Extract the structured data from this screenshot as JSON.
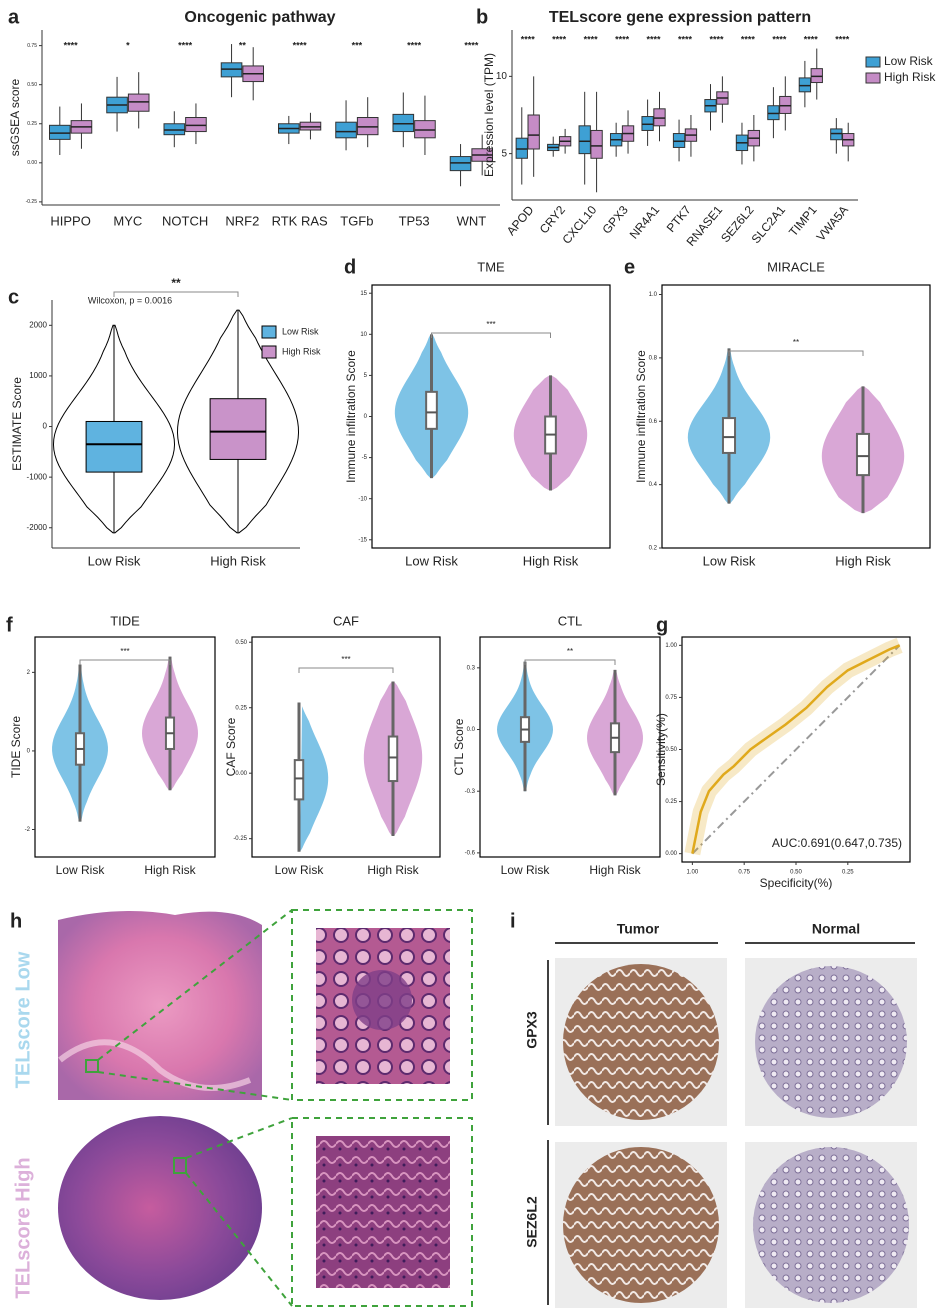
{
  "chart_data": [
    {
      "type": "box",
      "panel": "a",
      "title": "Oncogenic pathway",
      "y_label": "ssGSEA score",
      "categories": [
        "HIPPO",
        "MYC",
        "NOTCH",
        "NRF2",
        "RTK RAS",
        "TGFb",
        "TP53",
        "WNT"
      ],
      "significance": [
        "****",
        "*",
        "****",
        "**",
        "****",
        "***",
        "****",
        "****"
      ],
      "ylim": [
        -0.27,
        0.85
      ],
      "yticks": [
        -0.25,
        {
          "value": 0,
          "label": "0.00"
        },
        0.25,
        {
          "value": 0.5,
          "label": "0.50"
        },
        0.75
      ],
      "series": [
        {
          "name": "Low Risk",
          "color": "#3ea0d4",
          "values": [
            [
              0.05,
              0.15,
              0.19,
              0.24,
              0.36
            ],
            [
              0.2,
              0.32,
              0.37,
              0.42,
              0.55
            ],
            [
              0.1,
              0.18,
              0.21,
              0.25,
              0.33
            ],
            [
              0.42,
              0.55,
              0.6,
              0.64,
              0.76
            ],
            [
              0.12,
              0.19,
              0.22,
              0.25,
              0.3
            ],
            [
              0.08,
              0.16,
              0.2,
              0.26,
              0.4
            ],
            [
              0.1,
              0.2,
              0.25,
              0.31,
              0.45
            ],
            [
              -0.15,
              -0.05,
              0,
              0.04,
              0.12
            ]
          ]
        },
        {
          "name": "High Risk",
          "color": "#c58cc6",
          "values": [
            [
              0.09,
              0.19,
              0.23,
              0.27,
              0.38
            ],
            [
              0.22,
              0.33,
              0.39,
              0.44,
              0.58
            ],
            [
              0.12,
              0.2,
              0.24,
              0.29,
              0.38
            ],
            [
              0.4,
              0.52,
              0.57,
              0.62,
              0.74
            ],
            [
              0.15,
              0.21,
              0.23,
              0.26,
              0.32
            ],
            [
              0.1,
              0.18,
              0.23,
              0.29,
              0.42
            ],
            [
              0.05,
              0.16,
              0.21,
              0.27,
              0.43
            ],
            [
              -0.08,
              0.01,
              0.05,
              0.09,
              0.18
            ]
          ]
        }
      ]
    },
    {
      "type": "box",
      "panel": "b",
      "title": "TELscore gene expression pattern",
      "y_label": "Expression level (TPM)",
      "categories": [
        "APOD",
        "CRY2",
        "CXCL10",
        "GPX3",
        "NR4A1",
        "PTK7",
        "RNASE1",
        "SEZ6L2",
        "SLC2A1",
        "TIMP1",
        "VWA5A"
      ],
      "significance": [
        "****",
        "****",
        "****",
        "****",
        "****",
        "****",
        "****",
        "****",
        "****",
        "****",
        "****"
      ],
      "ylim": [
        2,
        13
      ],
      "yticks": [
        5,
        10
      ],
      "legend": "right",
      "series": [
        {
          "name": "Low Risk",
          "color": "#3ea0d4",
          "values": [
            [
              3,
              4.7,
              5.3,
              6,
              8
            ],
            [
              4.8,
              5.2,
              5.4,
              5.6,
              6.1
            ],
            [
              3,
              5,
              5.8,
              6.8,
              9
            ],
            [
              4.8,
              5.5,
              5.9,
              6.3,
              7
            ],
            [
              5.5,
              6.5,
              6.9,
              7.4,
              8.5
            ],
            [
              4.5,
              5.4,
              5.8,
              6.3,
              7.2
            ],
            [
              6.5,
              7.7,
              8.1,
              8.5,
              9.5
            ],
            [
              4.3,
              5.2,
              5.7,
              6.2,
              7
            ],
            [
              6,
              7.2,
              7.6,
              8.1,
              9.3
            ],
            [
              8,
              9,
              9.4,
              9.9,
              11
            ],
            [
              5,
              5.9,
              6.3,
              6.6,
              7.3
            ]
          ]
        },
        {
          "name": "High Risk",
          "color": "#c58cc6",
          "values": [
            [
              3.5,
              5.3,
              6.2,
              7.5,
              10
            ],
            [
              5,
              5.5,
              5.8,
              6.1,
              6.6
            ],
            [
              2.5,
              4.7,
              5.5,
              6.5,
              9
            ],
            [
              5,
              5.8,
              6.3,
              6.8,
              7.8
            ],
            [
              5.8,
              6.8,
              7.3,
              7.9,
              9
            ],
            [
              4.8,
              5.8,
              6.2,
              6.6,
              7.5
            ],
            [
              7,
              8.2,
              8.6,
              9,
              10
            ],
            [
              4.5,
              5.5,
              6,
              6.5,
              7.5
            ],
            [
              6.5,
              7.6,
              8.1,
              8.7,
              10
            ],
            [
              8.5,
              9.6,
              10,
              10.5,
              11.8
            ],
            [
              4.5,
              5.5,
              5.9,
              6.3,
              7
            ]
          ]
        }
      ]
    },
    {
      "type": "violin",
      "panel": "c",
      "y_label": "ESTIMATE Score",
      "significance": "**",
      "test_label": "Wilcoxon, p = 0.0016",
      "categories": [
        "Low Risk",
        "High Risk"
      ],
      "legend": [
        "Low Risk",
        "High Risk"
      ],
      "colors": [
        "#5fb3e0",
        "#c993c9"
      ],
      "ylim": [
        -2400,
        2500
      ],
      "yticks": [
        -2000,
        -1000,
        0,
        1000,
        2000
      ],
      "values": [
        [
          -2100,
          -900,
          -350,
          100,
          2000
        ],
        [
          -2100,
          -650,
          -100,
          550,
          2300
        ]
      ]
    },
    {
      "type": "violin",
      "panel": "d",
      "title": "TME",
      "y_label": "Immune infiltration Score",
      "significance": "***",
      "categories": [
        "Low Risk",
        "High Risk"
      ],
      "colors": [
        "#7ec3e6",
        "#d9a7d6"
      ],
      "ylim": [
        -16,
        16
      ],
      "yticks": [
        -15,
        -10,
        -5,
        0,
        5,
        10,
        15
      ],
      "values": [
        [
          -7.5,
          -1.5,
          0.5,
          3,
          10
        ],
        [
          -9,
          -4.5,
          -2.2,
          0,
          5
        ]
      ]
    },
    {
      "type": "violin",
      "panel": "e",
      "title": "MIRACLE",
      "y_label": "Immune infiltration Score",
      "significance": "**",
      "categories": [
        "Low Risk",
        "High Risk"
      ],
      "colors": [
        "#7ec3e6",
        "#d9a7d6"
      ],
      "ylim": [
        0.2,
        1.03
      ],
      "yticks": [
        0.2,
        0.4,
        0.6,
        0.8,
        {
          "value": 1,
          "label": "1.0"
        }
      ],
      "values": [
        [
          0.34,
          0.5,
          0.55,
          0.61,
          0.83
        ],
        [
          0.31,
          0.43,
          0.49,
          0.56,
          0.71
        ]
      ]
    },
    {
      "type": "violin",
      "panel": "f",
      "title": "TIDE",
      "y_label": "TIDE Score",
      "significance": "***",
      "categories": [
        "Low Risk",
        "High Risk"
      ],
      "colors": [
        "#7ec3e6",
        "#d9a7d6"
      ],
      "ylim": [
        -2.7,
        2.9
      ],
      "yticks": [
        -2,
        0,
        2
      ],
      "values": [
        [
          -1.8,
          -0.35,
          0.05,
          0.45,
          2.2
        ],
        [
          -1,
          0.05,
          0.45,
          0.85,
          2.4
        ]
      ]
    },
    {
      "type": "violin",
      "title": "CAF",
      "y_label": "CAF Score",
      "significance": "***",
      "categories": [
        "Low Risk",
        "High Risk"
      ],
      "colors": [
        "#7ec3e6",
        "#d9a7d6"
      ],
      "ylim": [
        -0.32,
        0.52
      ],
      "yticks": [
        -0.25,
        {
          "value": 0,
          "label": "0.00"
        },
        0.25,
        {
          "value": 0.5,
          "label": "0.50"
        }
      ],
      "values": [
        [
          -0.3,
          -0.1,
          -0.02,
          0.05,
          0.27
        ],
        [
          -0.24,
          -0.03,
          0.06,
          0.14,
          0.35
        ]
      ]
    },
    {
      "type": "violin",
      "title": "CTL",
      "y_label": "CTL Score",
      "significance": "**",
      "categories": [
        "Low Risk",
        "High Risk"
      ],
      "colors": [
        "#7ec3e6",
        "#d9a7d6"
      ],
      "ylim": [
        -0.62,
        0.45
      ],
      "yticks": [
        -0.6,
        -0.3,
        {
          "value": 0,
          "label": "0.0"
        },
        0.3
      ],
      "values": [
        [
          -0.3,
          -0.06,
          0,
          0.06,
          0.33
        ],
        [
          -0.32,
          -0.11,
          -0.04,
          0.03,
          0.29
        ]
      ]
    },
    {
      "type": "line",
      "panel": "g",
      "x_label": "Specificity(%)",
      "y_label": "Sensitivity(%)",
      "annotation": "AUC:0.691(0.647,0.735)",
      "color": "#e0a91c",
      "x": [
        1,
        0.98,
        0.96,
        0.92,
        0.85,
        0.8,
        0.72,
        0.65,
        0.55,
        0.45,
        0.35,
        0.25,
        0.15,
        0.05,
        0
      ],
      "y": [
        0,
        0.1,
        0.2,
        0.3,
        0.38,
        0.42,
        0.5,
        0.55,
        0.62,
        0.7,
        0.8,
        0.88,
        0.93,
        0.98,
        1
      ],
      "xlim": [
        1.05,
        -0.05
      ],
      "xticks": [
        {
          "value": 1,
          "label": "1.00"
        },
        0.75,
        {
          "value": 0.5,
          "label": "0.50"
        },
        0.25
      ],
      "ylim": [
        -0.04,
        1.04
      ],
      "yticks": [
        {
          "value": 0,
          "label": "0.00"
        },
        0.25,
        {
          "value": 0.5,
          "label": "0.50"
        },
        0.75,
        {
          "value": 1,
          "label": "1.00"
        }
      ]
    }
  ],
  "histology": {
    "panel": "h",
    "groups": [
      "TELscore Low",
      "TELscore High"
    ]
  },
  "ihc": {
    "panel": "i",
    "columns": [
      "Tumor",
      "Normal"
    ],
    "genes": [
      "GPX3",
      "SEZ6L2"
    ]
  }
}
